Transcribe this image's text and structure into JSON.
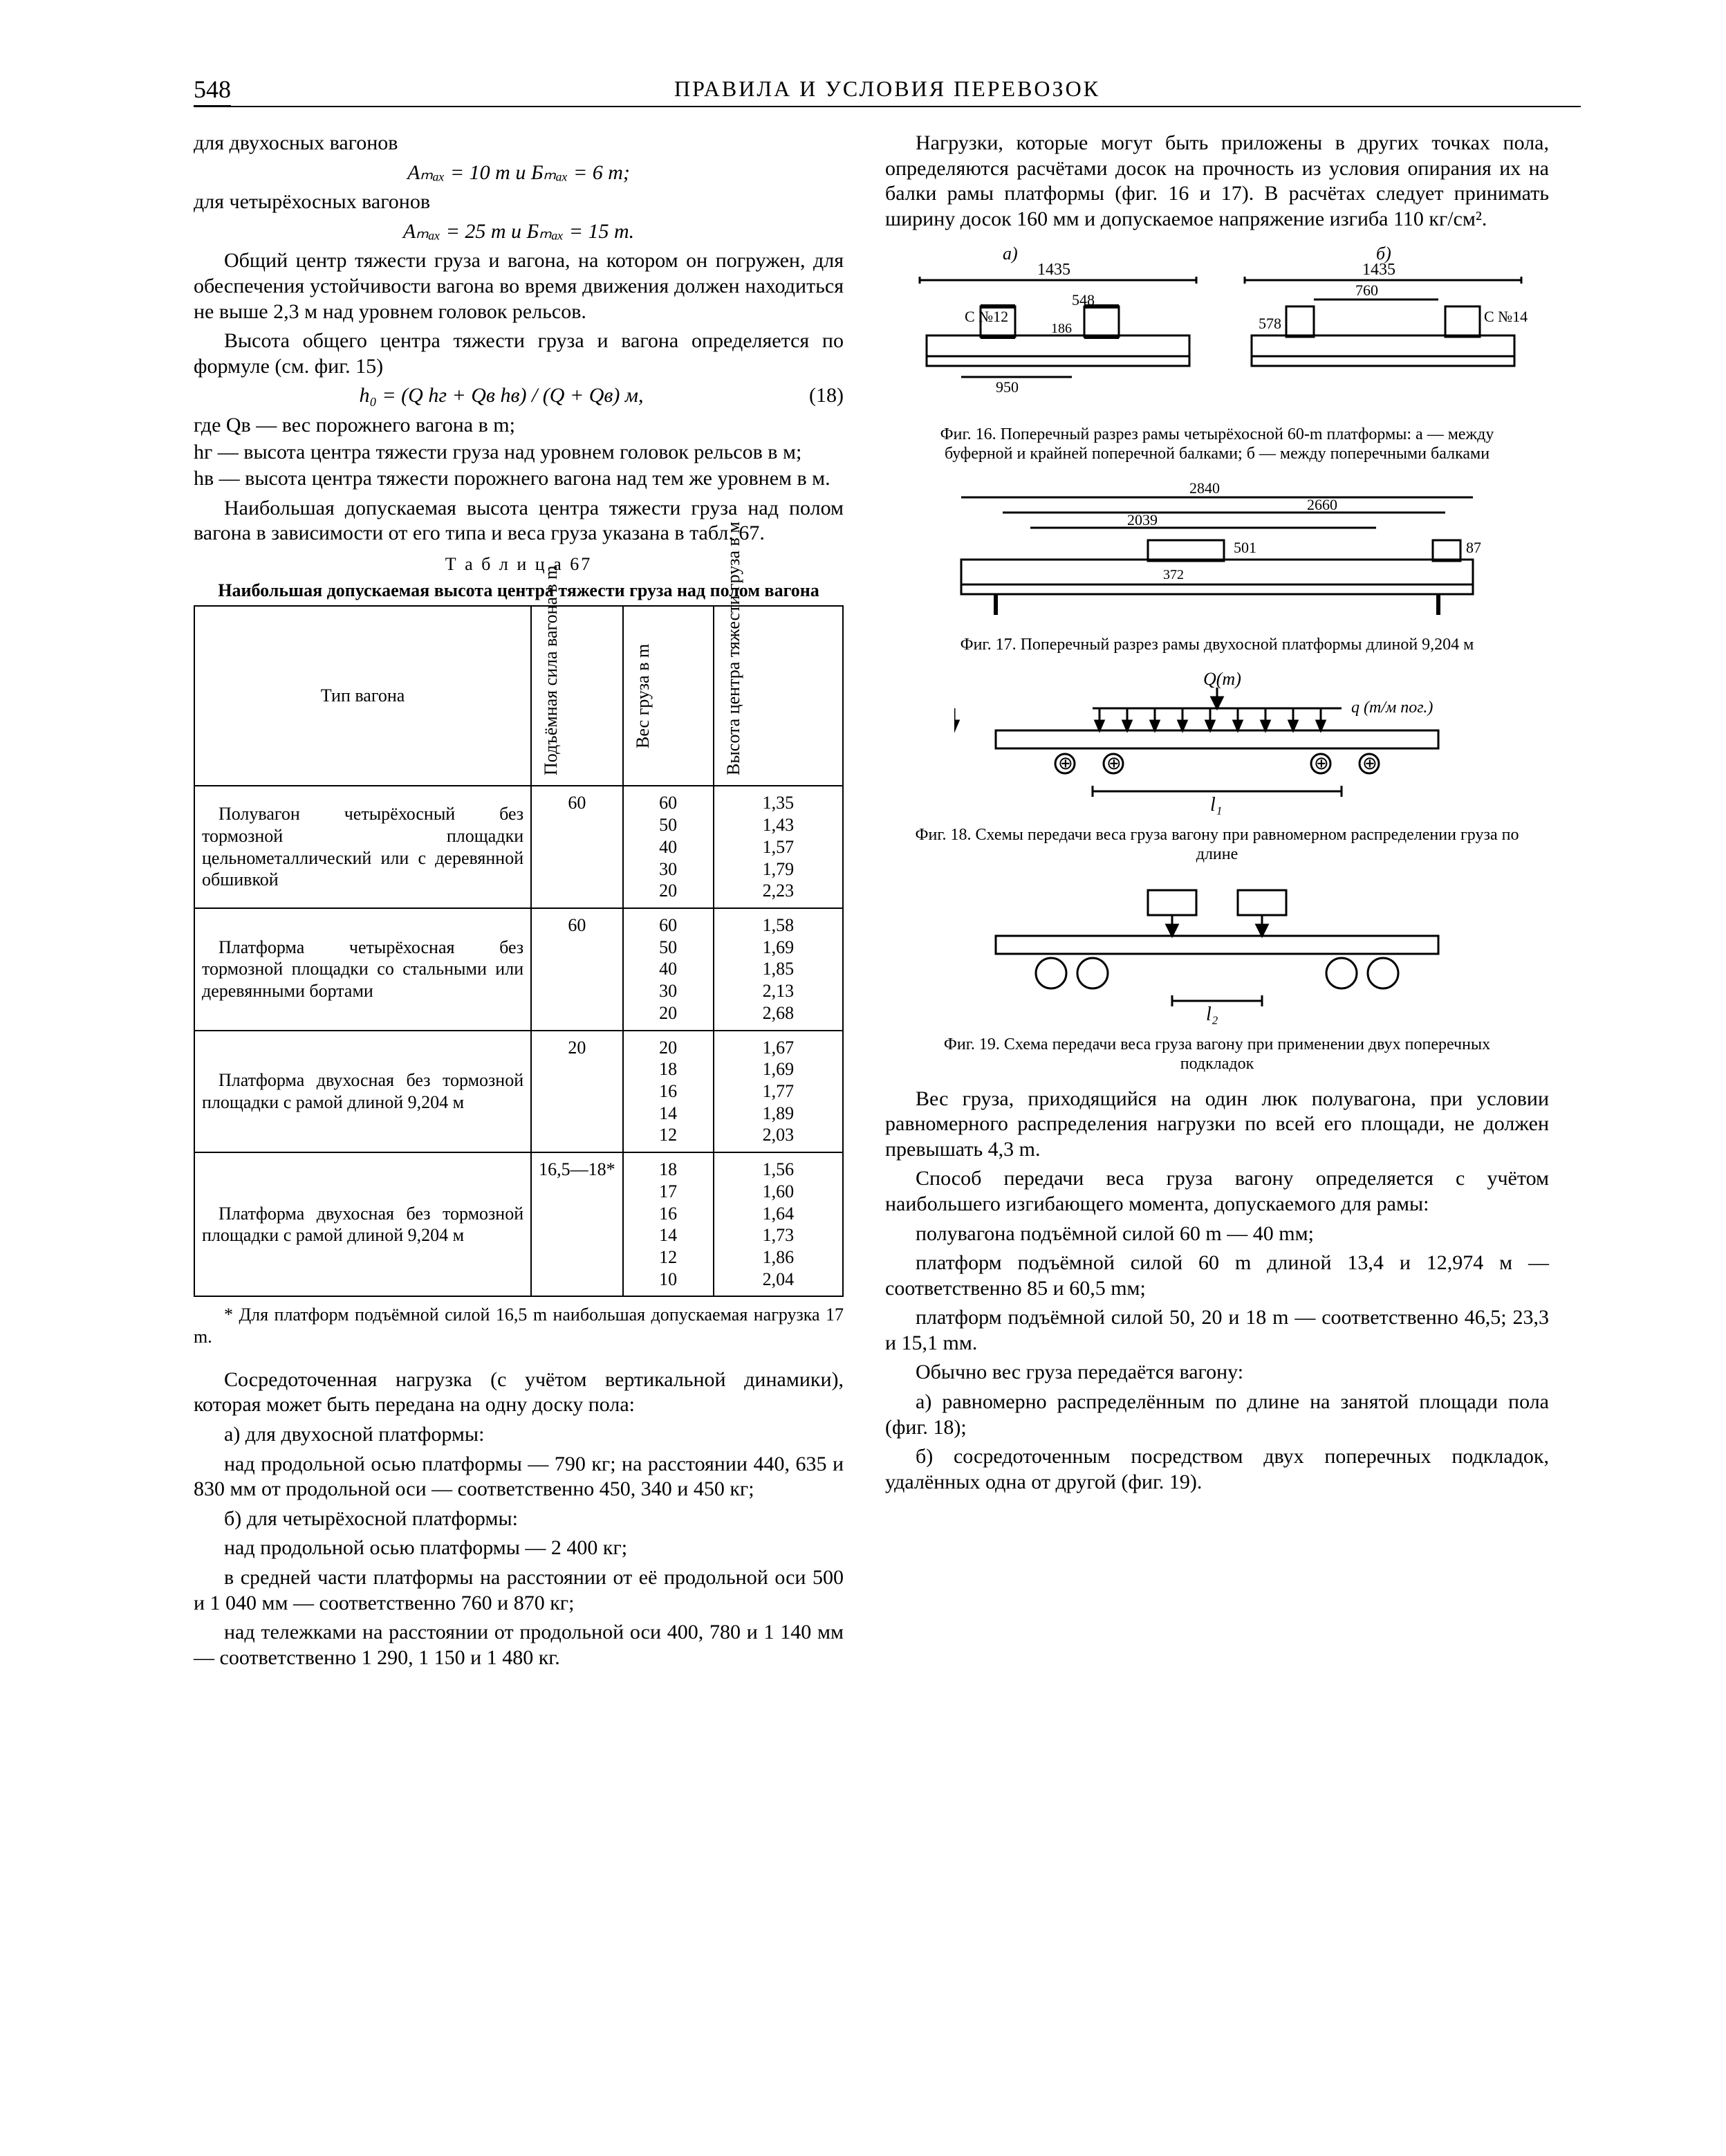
{
  "pageNumber": "548",
  "runningTitle": "ПРАВИЛА И УСЛОВИЯ ПЕРЕВОЗОК",
  "left": {
    "l1": "для двухосных вагонов",
    "f1": "Aₘₐₓ = 10 m и Бₘₐₓ = 6 m;",
    "l2": "для четырёхосных вагонов",
    "f2": "Aₘₐₓ = 25 m и Бₘₐₓ = 15 m.",
    "p1": "Общий центр тяжести груза и вагона, на котором он погружен, для обеспечения устой­чивости вагона во время движения должен находиться не выше 2,3 м над уровнем голо­вок рельсов.",
    "p2": "Высота общего центра тяжести груза и вагона определяется по формуле (см. фиг. 15)",
    "formula18_html": "h₀ = (Q hг + Qв hв) / (Q + Qв)   м,",
    "formula18_num": "(18)",
    "def_intro": "где ",
    "def1": "Qв — вес порожнего вагона в m;",
    "def2": "hг — высота центра тяжести груза над уровнем головок рельсов в м;",
    "def3": "hв — высота центра тяжести порожнего вагона над тем же уровнем в м.",
    "p3": "Наибольшая допускаемая высота центра тяжести груза над полом вагона в зависимости от его типа и веса груза указана в табл. 67.",
    "tbl_num": "Т а б л и ц а  67",
    "tbl_title": "Наибольшая допускаемая высота центра тяжести груза над полом вагона",
    "headers": {
      "c1": "Тип вагона",
      "c2": "Подъёмная сила вагона в m",
      "c3": "Вес груза в m",
      "c4": "Высота цент­ра тяжести груза в м"
    },
    "rows": [
      {
        "d": "Полувагон четырёхосный без тормозной площадки цельнометаллический или с деревянной обшивкой",
        "p": "60",
        "w": [
          "60",
          "50",
          "40",
          "30",
          "20"
        ],
        "h": [
          "1,35",
          "1,43",
          "1,57",
          "1,79",
          "2,23"
        ]
      },
      {
        "d": "Платформа четырёхосная без тормозной площадки со стальными или деревянными бортами",
        "p": "60",
        "w": [
          "60",
          "50",
          "40",
          "30",
          "20"
        ],
        "h": [
          "1,58",
          "1,69",
          "1,85",
          "2,13",
          "2,68"
        ]
      },
      {
        "d": "Платформа двухосная без тормозной площадки с ра­мой длиной 9,204 м",
        "p": "20",
        "w": [
          "20",
          "18",
          "16",
          "14",
          "12"
        ],
        "h": [
          "1,67",
          "1,69",
          "1,77",
          "1,89",
          "2,03"
        ]
      },
      {
        "d": "Платформа двухосная без тормозной площадки с ра­мой длиной 9,204 м",
        "p": "16,5—18*",
        "w": [
          "18",
          "17",
          "16",
          "14",
          "12",
          "10"
        ],
        "h": [
          "1,56",
          "1,60",
          "1,64",
          "1,73",
          "1,86",
          "2,04"
        ]
      }
    ],
    "note": "* Для платформ подъёмной силой 16,5 m наи­большая допускаемая нагрузка 17 m.",
    "p4": "Сосредоточенная нагрузка (с учётом вер­тикальной динамики), которая может быть передана на одну доску пола:",
    "p5": "а) для двухосной платформы:",
    "p6": "над продольной осью платформы — 790 кг; на расстоянии 440, 635 и 830 мм от продоль­ной оси — соответственно 450, 340 и 450 кг;",
    "p7": "б) для четырёхосной платформы:",
    "p8": "над продольной осью платформы — 2 400 кг;",
    "p9": "в средней части платформы на расстоянии от её продольной оси 500 и 1 040 мм — соот­ветственно 760 и 870 кг;",
    "p10": "над тележками на расстоянии от продоль­ной оси 400, 780 и 1 140 мм — соответственно 1 290, 1 150 и 1 480 кг."
  },
  "right": {
    "p1": "Нагрузки, которые могут быть приложены в других точках пола, определяются расчё­тами досок на прочность из условия опира­ния их на балки рамы платформы (фиг. 16 и 17). В расчётах следует принимать ширину досок 160 мм и допускаемое напряжение из­гиба 110 кг/см².",
    "fig16": {
      "labels": {
        "a": "а)",
        "b": "б)",
        "d1435": "1435",
        "c12": "С №12",
        "d950": "950",
        "d548": "548",
        "d186": "186",
        "d578": "578",
        "d760": "760",
        "c14": "С №14"
      },
      "caption": "Фиг. 16. Поперечный разрез рамы четырёхосной 60-m платформы: а — между буферной и крайней поперечной балками; б — между поперечными балками"
    },
    "fig17": {
      "labels": {
        "d2840": "2840",
        "d2660": "2660",
        "d2039": "2039",
        "d501": "501",
        "d372": "372",
        "d87": "87"
      },
      "caption": "Фиг. 17. Поперечный разрез рамы двухосной плат­формы длиной 9,204 м"
    },
    "fig18": {
      "labels": {
        "Q": "Q(m)",
        "q": "q (m/м пог.)",
        "l": "l₁",
        "plus": "⊕"
      },
      "caption": "Фиг. 18. Схемы передачи веса груза вагону при равномерном распределении груза по длине"
    },
    "fig19": {
      "labels": {
        "l2": "l₂"
      },
      "caption": "Фиг. 19. Схема передачи веса груза вагону при применении двух поперечных подкладок"
    },
    "p2": "Вес груза, приходящийся на один люк полувагона, при условии равномерного рас­пределения нагрузки по всей его площади, не должен превышать 4,3 m.",
    "p3": "Способ передачи веса груза вагону опре­деляется с учётом наибольшего изгибающего момента, допускаемого для рамы:",
    "p4": "полувагона подъёмной силой 60 m — 40 mм;",
    "p5": "платформ подъёмной силой 60 m длиной 13,4 и 12,974 м — соответственно 85 и 60,5 mм;",
    "p6": "платформ подъёмной силой 50, 20 и 18 m — соответственно 46,5; 23,3 и 15,1 mм.",
    "p7": "Обычно вес груза передаётся вагону:",
    "p8": "а) равномерно распределённым по длине на занятой площади пола (фиг. 18);",
    "p9": "б) сосредоточенным посредством двух по­перечных подкладок, удалённых одна от дру­гой (фиг. 19)."
  }
}
